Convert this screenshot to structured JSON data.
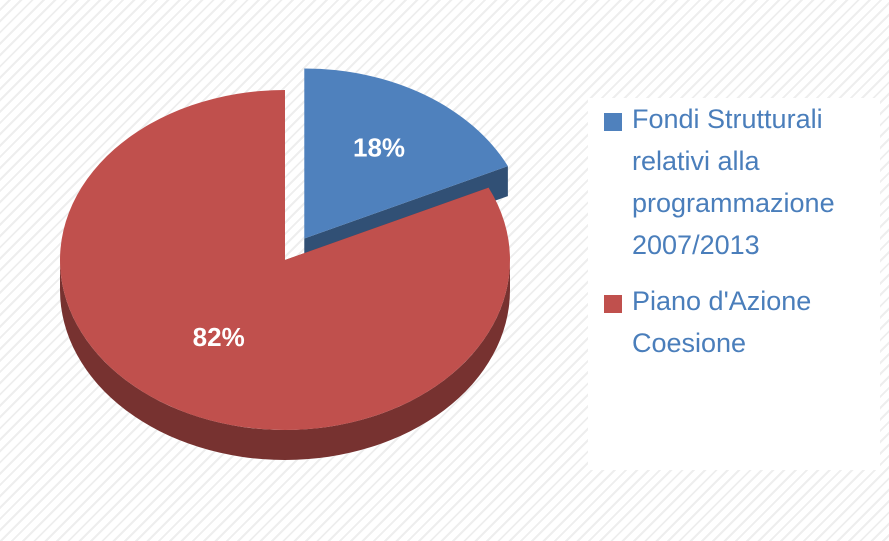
{
  "chart_data": {
    "type": "pie",
    "categories": [
      "Fondi Strutturali relativi alla programmazione 2007/2013",
      "Piano d'Azione Coesione"
    ],
    "values": [
      18,
      82
    ],
    "value_labels": [
      "18%",
      "82%"
    ],
    "colors": [
      "#4f81bd",
      "#c0504d"
    ],
    "legend": "right"
  }
}
